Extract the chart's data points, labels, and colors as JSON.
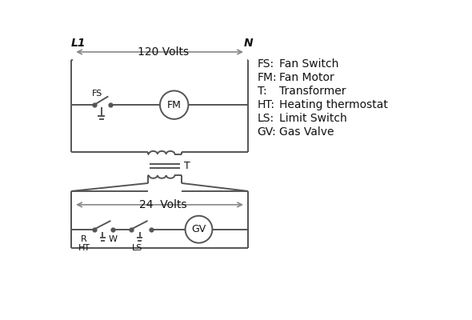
{
  "background_color": "#ffffff",
  "line_color": "#555555",
  "text_color": "#111111",
  "legend_items": [
    [
      "FS:",
      "Fan Switch"
    ],
    [
      "FM:",
      "Fan Motor"
    ],
    [
      "T:",
      "Transformer"
    ],
    [
      "HT:",
      "Heating thermostat"
    ],
    [
      "LS:",
      "Limit Switch"
    ],
    [
      "GV:",
      "Gas Valve"
    ]
  ]
}
